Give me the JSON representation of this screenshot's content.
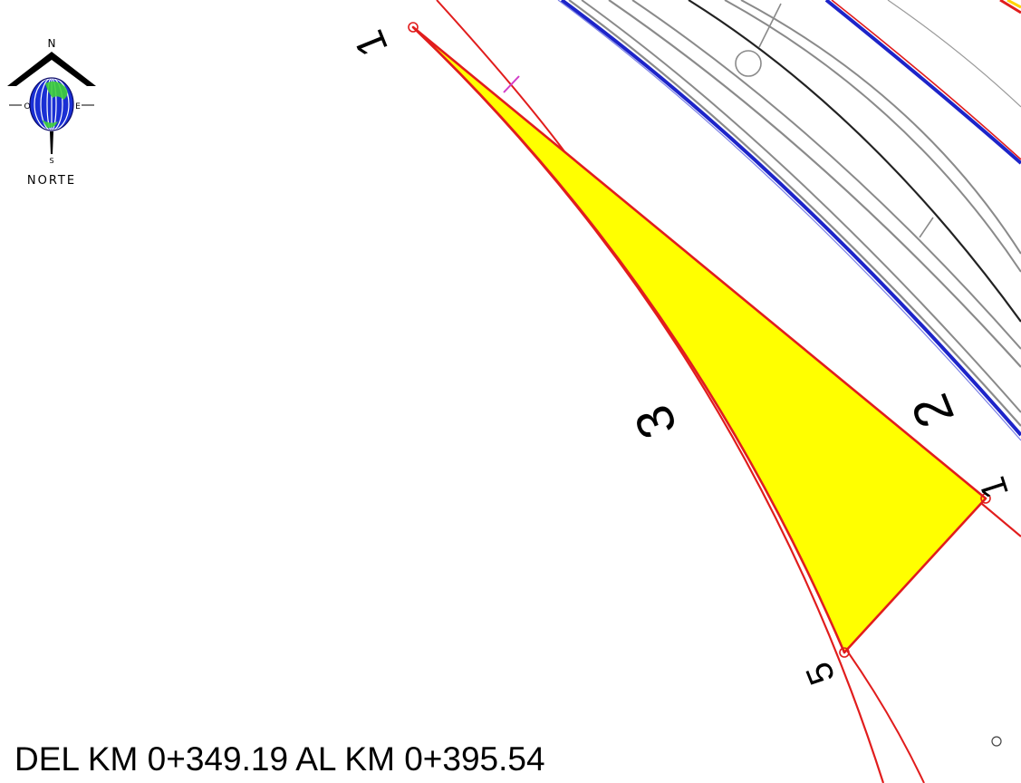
{
  "compass": {
    "north": "N",
    "south": "S",
    "east": "E",
    "west": "O",
    "caption": "NORTE",
    "icon": "north-arrow-globe-icon"
  },
  "vertex_labels": {
    "top": "1",
    "right": "1",
    "bottom": "5"
  },
  "side_labels": {
    "side_2": "2",
    "side_3": "3"
  },
  "title": "DEL KM 0+349.19 AL KM 0+395.54",
  "colors": {
    "parcel_fill": "#ffff00",
    "boundary": "#e11d1d",
    "blue_line": "#1d24c9",
    "gray_line": "#8a8a8a",
    "dark_line": "#222222",
    "magenta_tick": "#d23bc8"
  }
}
